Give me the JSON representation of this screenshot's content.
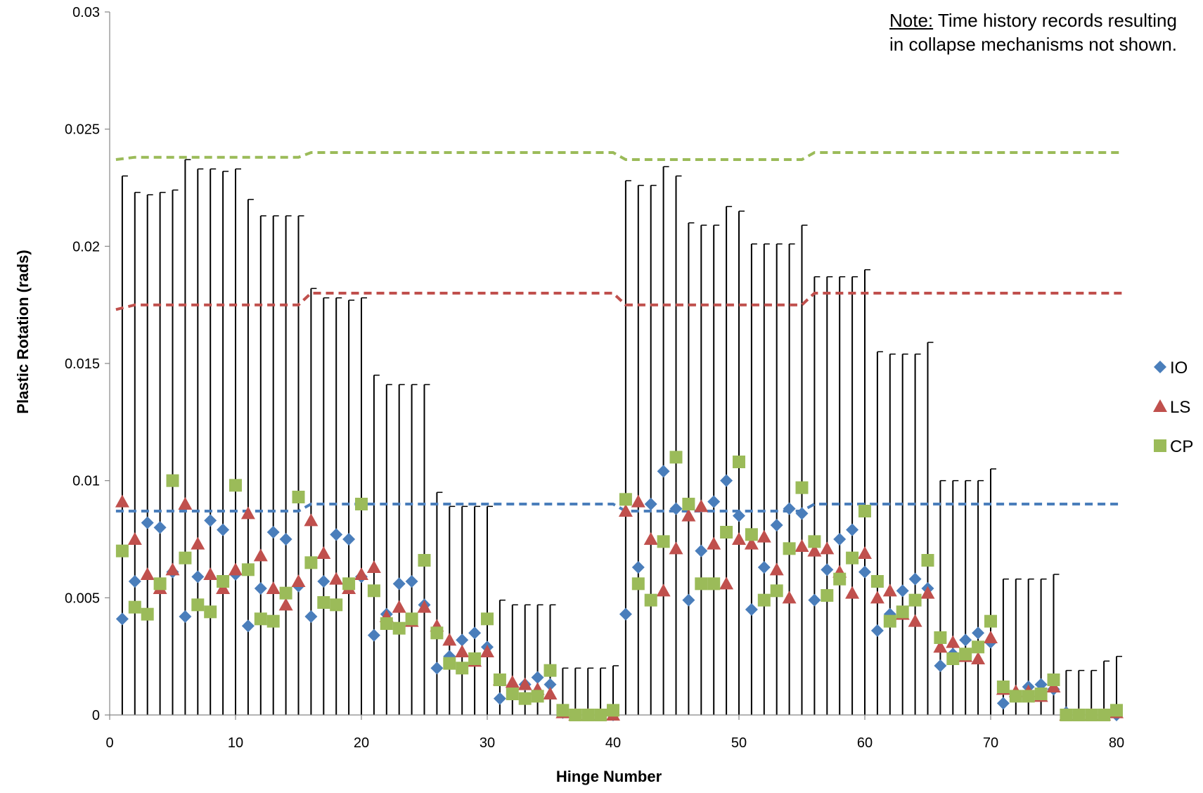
{
  "chart_data": {
    "type": "scatter",
    "title": "",
    "xlabel": "Hinge Number",
    "ylabel": "Plastic Rotation (rads)",
    "xlim": [
      0,
      80
    ],
    "ylim": [
      0,
      0.03
    ],
    "x_ticks": [
      "0",
      "10",
      "20",
      "30",
      "40",
      "50",
      "60",
      "70",
      "80"
    ],
    "y_ticks": [
      "0",
      "0.005",
      "0.01",
      "0.015",
      "0.02",
      "0.025",
      "0.03"
    ],
    "grid": false,
    "legend_position": "right",
    "note": {
      "label": "Note:",
      "text": " Time history records resulting in collapse mechanisms not shown."
    },
    "series": [
      {
        "name": "IO",
        "marker": "diamond",
        "color": "#4A7EBB",
        "x": [
          1,
          2,
          3,
          4,
          5,
          6,
          7,
          8,
          9,
          10,
          11,
          12,
          13,
          14,
          15,
          16,
          17,
          18,
          19,
          20,
          21,
          22,
          23,
          24,
          25,
          26,
          27,
          28,
          29,
          30,
          31,
          32,
          33,
          34,
          35,
          36,
          37,
          38,
          39,
          40,
          41,
          42,
          43,
          44,
          45,
          46,
          47,
          48,
          49,
          50,
          51,
          52,
          53,
          54,
          55,
          56,
          57,
          58,
          59,
          60,
          61,
          62,
          63,
          64,
          65,
          66,
          67,
          68,
          69,
          70,
          71,
          72,
          73,
          74,
          75,
          76,
          77,
          78,
          79,
          80
        ],
        "values": [
          0.0041,
          0.0057,
          0.0082,
          0.008,
          0.0061,
          0.0042,
          0.0059,
          0.0083,
          0.0079,
          0.006,
          0.0038,
          0.0054,
          0.0078,
          0.0075,
          0.0055,
          0.0042,
          0.0057,
          0.0077,
          0.0075,
          0.0059,
          0.0034,
          0.0043,
          0.0056,
          0.0057,
          0.0047,
          0.002,
          0.0025,
          0.0032,
          0.0035,
          0.0029,
          0.0007,
          0.0009,
          0.0013,
          0.0016,
          0.0013,
          0.0001,
          0.0,
          0.0,
          0.0,
          0.0,
          0.0043,
          0.0063,
          0.009,
          0.0104,
          0.0088,
          0.0049,
          0.007,
          0.0091,
          0.01,
          0.0085,
          0.0045,
          0.0063,
          0.0081,
          0.0088,
          0.0086,
          0.0049,
          0.0062,
          0.0075,
          0.0079,
          0.0061,
          0.0036,
          0.0043,
          0.0053,
          0.0058,
          0.0054,
          0.0021,
          0.0026,
          0.0032,
          0.0035,
          0.0031,
          0.0005,
          0.0009,
          0.0012,
          0.0013,
          0.0011,
          0.0001,
          0.0,
          0.0,
          0.0,
          0.0
        ],
        "error_upper": [
          0.023,
          0.0223,
          0.0222,
          0.0223,
          0.0224,
          0.0237,
          0.0233,
          0.0233,
          0.0232,
          0.0233,
          0.022,
          0.0213,
          0.0213,
          0.0213,
          0.0213,
          0.0182,
          0.0178,
          0.0178,
          0.0177,
          0.0178,
          0.0145,
          0.0141,
          0.0141,
          0.0141,
          0.0141,
          0.0095,
          0.0089,
          0.0089,
          0.0089,
          0.0089,
          0.0049,
          0.0047,
          0.0047,
          0.0047,
          0.0047,
          0.002,
          0.002,
          0.002,
          0.002,
          0.0021,
          0.0228,
          0.0226,
          0.0226,
          0.0234,
          0.023,
          0.021,
          0.0209,
          0.0209,
          0.0217,
          0.0215,
          0.0201,
          0.0201,
          0.0201,
          0.0201,
          0.0209,
          0.0187,
          0.0187,
          0.0187,
          0.0187,
          0.019,
          0.0155,
          0.0154,
          0.0154,
          0.0154,
          0.0159,
          0.01,
          0.01,
          0.01,
          0.01,
          0.0105,
          0.0058,
          0.0058,
          0.0058,
          0.0058,
          0.006,
          0.0019,
          0.0019,
          0.0019,
          0.0023,
          0.0025
        ],
        "error_lower": [
          0.0,
          0.0,
          0.0,
          0.0,
          0.0,
          0.0,
          0.0,
          0.0,
          0.0,
          0.0,
          0.0,
          0.0,
          0.0,
          0.0,
          0.0,
          0.0,
          0.0,
          0.0,
          0.0,
          0.0,
          0.0,
          0.0,
          0.0,
          0.0,
          0.0,
          0.0,
          0.0,
          0.0,
          0.0,
          0.0,
          0.0,
          0.0,
          0.0,
          0.0,
          0.0,
          0.0,
          0.0,
          0.0,
          0.0,
          0.0,
          0.0,
          0.0,
          0.0,
          0.0,
          0.0,
          0.0,
          0.0,
          0.0,
          0.0,
          0.0,
          0.0,
          0.0,
          0.0,
          0.0,
          0.0,
          0.0,
          0.0,
          0.0,
          0.0,
          0.0,
          0.0,
          0.0,
          0.0,
          0.0,
          0.0,
          0.0,
          0.0,
          0.0,
          0.0,
          0.0,
          0.0,
          0.0,
          0.0,
          0.0,
          0.0,
          0.0,
          0.0,
          0.0,
          0.0,
          0.0
        ]
      },
      {
        "name": "LS",
        "marker": "triangle",
        "color": "#C0504D",
        "x": [
          1,
          2,
          3,
          4,
          5,
          6,
          7,
          8,
          9,
          10,
          11,
          12,
          13,
          14,
          15,
          16,
          17,
          18,
          19,
          20,
          21,
          22,
          23,
          24,
          25,
          26,
          27,
          28,
          29,
          30,
          31,
          32,
          33,
          34,
          35,
          36,
          37,
          38,
          39,
          40,
          41,
          42,
          43,
          44,
          45,
          46,
          47,
          48,
          49,
          50,
          51,
          52,
          53,
          54,
          55,
          56,
          57,
          58,
          59,
          60,
          61,
          62,
          63,
          64,
          65,
          66,
          67,
          68,
          69,
          70,
          71,
          72,
          73,
          74,
          75,
          76,
          77,
          78,
          79,
          80
        ],
        "values": [
          0.0091,
          0.0075,
          0.006,
          0.0054,
          0.0062,
          0.009,
          0.0073,
          0.006,
          0.0054,
          0.0062,
          0.0086,
          0.0068,
          0.0054,
          0.0047,
          0.0057,
          0.0083,
          0.0069,
          0.0058,
          0.0054,
          0.006,
          0.0063,
          0.0042,
          0.0046,
          0.004,
          0.0046,
          0.0038,
          0.0032,
          0.0027,
          0.0023,
          0.0027,
          0.0015,
          0.0014,
          0.0013,
          0.0011,
          0.0009,
          0.0001,
          0.0,
          0.0,
          0.0,
          0.0,
          0.0087,
          0.0091,
          0.0075,
          0.0053,
          0.0071,
          0.0085,
          0.0089,
          0.0073,
          0.0056,
          0.0075,
          0.0073,
          0.0076,
          0.0062,
          0.005,
          0.0072,
          0.007,
          0.0071,
          0.0061,
          0.0052,
          0.0069,
          0.005,
          0.0053,
          0.0043,
          0.004,
          0.0052,
          0.0029,
          0.0031,
          0.0025,
          0.0024,
          0.0033,
          0.0011,
          0.001,
          0.001,
          0.0008,
          0.0012,
          0.0,
          0.0,
          0.0,
          0.0,
          0.0001
        ]
      },
      {
        "name": "CP",
        "marker": "square",
        "color": "#9BBB59",
        "x": [
          1,
          2,
          3,
          4,
          5,
          6,
          7,
          8,
          9,
          10,
          11,
          12,
          13,
          14,
          15,
          16,
          17,
          18,
          19,
          20,
          21,
          22,
          23,
          24,
          25,
          26,
          27,
          28,
          29,
          30,
          31,
          32,
          33,
          34,
          35,
          36,
          37,
          38,
          39,
          40,
          41,
          42,
          43,
          44,
          45,
          46,
          47,
          48,
          49,
          50,
          51,
          52,
          53,
          54,
          55,
          56,
          57,
          58,
          59,
          60,
          61,
          62,
          63,
          64,
          65,
          66,
          67,
          68,
          69,
          70,
          71,
          72,
          73,
          74,
          75,
          76,
          77,
          78,
          79,
          80
        ],
        "values": [
          0.007,
          0.0046,
          0.0043,
          0.0056,
          0.01,
          0.0067,
          0.0047,
          0.0044,
          0.0057,
          0.0098,
          0.0062,
          0.0041,
          0.004,
          0.0052,
          0.0093,
          0.0065,
          0.0048,
          0.0047,
          0.0056,
          0.009,
          0.0053,
          0.0039,
          0.0037,
          0.0041,
          0.0066,
          0.0035,
          0.0022,
          0.002,
          0.0024,
          0.0041,
          0.0015,
          0.0009,
          0.0007,
          0.0008,
          0.0019,
          0.0002,
          0.0,
          0.0,
          0.0,
          0.0002,
          0.0092,
          0.0056,
          0.0049,
          0.0074,
          0.011,
          0.009,
          0.0056,
          0.0056,
          0.0078,
          0.0108,
          0.0077,
          0.0049,
          0.0053,
          0.0071,
          0.0097,
          0.0074,
          0.0051,
          0.0058,
          0.0067,
          0.0087,
          0.0057,
          0.004,
          0.0044,
          0.0049,
          0.0066,
          0.0033,
          0.0024,
          0.0026,
          0.0029,
          0.004,
          0.0012,
          0.0008,
          0.0008,
          0.0009,
          0.0015,
          0.0,
          0.0,
          0.0,
          0.0,
          0.0002
        ]
      }
    ],
    "threshold_lines": [
      {
        "series": "IO",
        "color": "#4A7EBB",
        "style": "dashed",
        "points": [
          [
            0.5,
            0.0087
          ],
          [
            15,
            0.0087
          ],
          [
            16,
            0.009
          ],
          [
            40,
            0.009
          ],
          [
            41,
            0.0087
          ],
          [
            55,
            0.0087
          ],
          [
            56,
            0.009
          ],
          [
            80.5,
            0.009
          ]
        ]
      },
      {
        "series": "LS",
        "color": "#C0504D",
        "style": "dashed",
        "points": [
          [
            0.5,
            0.0173
          ],
          [
            2,
            0.0175
          ],
          [
            15,
            0.0175
          ],
          [
            16,
            0.018
          ],
          [
            40,
            0.018
          ],
          [
            41,
            0.0175
          ],
          [
            55,
            0.0175
          ],
          [
            56,
            0.018
          ],
          [
            80.5,
            0.018
          ]
        ]
      },
      {
        "series": "CP",
        "color": "#9BBB59",
        "style": "dashed",
        "points": [
          [
            0.5,
            0.0237
          ],
          [
            2,
            0.0238
          ],
          [
            15,
            0.0238
          ],
          [
            16,
            0.024
          ],
          [
            40,
            0.024
          ],
          [
            41,
            0.0237
          ],
          [
            55,
            0.0237
          ],
          [
            56,
            0.024
          ],
          [
            80.5,
            0.024
          ]
        ]
      }
    ]
  }
}
